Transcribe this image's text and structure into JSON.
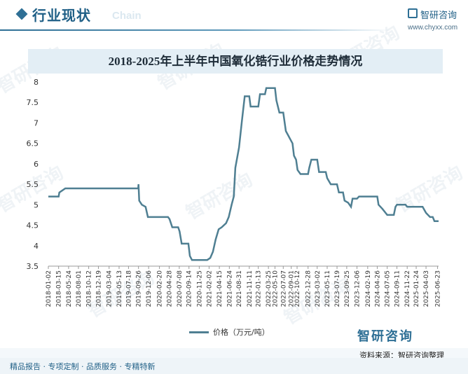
{
  "header": {
    "section_title": "行业现状",
    "section_title_en": "Chain"
  },
  "brand": {
    "name": "智研咨询",
    "url": "www.chyxx.com"
  },
  "watermark": {
    "text": "智研咨询"
  },
  "chart_data": {
    "type": "line",
    "title": "2018-2025年上半年中国氧化锆行业价格走势情况",
    "xlabel": "",
    "ylabel": "",
    "ylim": [
      3.5,
      8
    ],
    "yticks": [
      "3.5",
      "4",
      "4.5",
      "5",
      "5.5",
      "6",
      "6.5",
      "7",
      "7.5",
      "8"
    ],
    "xlim": [
      "2018-01-02",
      "2025-06-30"
    ],
    "xticks": [
      "2018-01-02",
      "2018-03-15",
      "2018-05-24",
      "2018-08-01",
      "2018-10-12",
      "2018-12-19",
      "2019-03-04",
      "2019-05-13",
      "2019-07-18",
      "2019-09-26",
      "2019-12-06",
      "2020-02-20",
      "2020-04-28",
      "2020-07-08",
      "2020-09-14",
      "2020-11-25",
      "2021-02-02",
      "2021-04-15",
      "2021-06-24",
      "2021-08-31",
      "2021-11-11",
      "2022-01-13",
      "2022-03-25",
      "2022-05-10",
      "2022-07-07",
      "2022-09-01",
      "2022-10-12",
      "2022-12-28",
      "2023-03-02",
      "2023-05-11",
      "2023-07-19",
      "2023-09-25",
      "2023-12-06",
      "2024-02-19",
      "2024-04-26",
      "2024-07-05",
      "2024-09-11",
      "2024-11-22",
      "2025-01-24",
      "2025-04-03",
      "2025-06-23"
    ],
    "grid": false,
    "legend_position": "bottom",
    "series": [
      {
        "name": "价格（万元/吨）",
        "color": "#4f7f92",
        "points": [
          [
            "2018-01-02",
            5.2
          ],
          [
            "2018-03-15",
            5.2
          ],
          [
            "2018-03-20",
            5.3
          ],
          [
            "2018-05-01",
            5.4
          ],
          [
            "2019-09-24",
            5.4
          ],
          [
            "2019-09-26",
            5.5
          ],
          [
            "2019-10-01",
            5.1
          ],
          [
            "2019-10-20",
            5.0
          ],
          [
            "2019-11-15",
            4.95
          ],
          [
            "2019-12-01",
            4.7
          ],
          [
            "2020-04-20",
            4.7
          ],
          [
            "2020-05-01",
            4.65
          ],
          [
            "2020-05-20",
            4.45
          ],
          [
            "2020-06-30",
            4.45
          ],
          [
            "2020-07-10",
            4.35
          ],
          [
            "2020-07-25",
            4.05
          ],
          [
            "2020-09-10",
            4.05
          ],
          [
            "2020-09-20",
            3.75
          ],
          [
            "2020-10-05",
            3.65
          ],
          [
            "2021-01-20",
            3.65
          ],
          [
            "2021-02-10",
            3.7
          ],
          [
            "2021-03-01",
            3.85
          ],
          [
            "2021-03-20",
            4.15
          ],
          [
            "2021-04-10",
            4.4
          ],
          [
            "2021-05-01",
            4.45
          ],
          [
            "2021-06-01",
            4.55
          ],
          [
            "2021-06-20",
            4.7
          ],
          [
            "2021-07-10",
            5.0
          ],
          [
            "2021-07-25",
            5.2
          ],
          [
            "2021-08-05",
            5.9
          ],
          [
            "2021-08-31",
            6.4
          ],
          [
            "2021-09-20",
            7.05
          ],
          [
            "2021-10-10",
            7.65
          ],
          [
            "2021-11-11",
            7.65
          ],
          [
            "2021-11-20",
            7.4
          ],
          [
            "2022-01-13",
            7.4
          ],
          [
            "2022-01-25",
            7.7
          ],
          [
            "2022-03-01",
            7.7
          ],
          [
            "2022-03-10",
            7.85
          ],
          [
            "2022-05-10",
            7.85
          ],
          [
            "2022-05-20",
            7.55
          ],
          [
            "2022-06-10",
            7.25
          ],
          [
            "2022-07-07",
            7.25
          ],
          [
            "2022-07-25",
            6.8
          ],
          [
            "2022-08-10",
            6.7
          ],
          [
            "2022-08-25",
            6.6
          ],
          [
            "2022-09-10",
            6.5
          ],
          [
            "2022-09-20",
            6.2
          ],
          [
            "2022-10-05",
            6.1
          ],
          [
            "2022-10-15",
            5.85
          ],
          [
            "2022-11-05",
            5.75
          ],
          [
            "2022-12-28",
            5.75
          ],
          [
            "2023-01-05",
            5.9
          ],
          [
            "2023-01-20",
            6.1
          ],
          [
            "2023-03-02",
            6.1
          ],
          [
            "2023-03-15",
            5.8
          ],
          [
            "2023-05-01",
            5.8
          ],
          [
            "2023-05-11",
            5.65
          ],
          [
            "2023-06-05",
            5.5
          ],
          [
            "2023-07-19",
            5.5
          ],
          [
            "2023-08-01",
            5.3
          ],
          [
            "2023-08-30",
            5.3
          ],
          [
            "2023-09-10",
            5.1
          ],
          [
            "2023-10-05",
            5.05
          ],
          [
            "2023-10-25",
            4.95
          ],
          [
            "2023-11-05",
            5.15
          ],
          [
            "2023-12-06",
            5.15
          ],
          [
            "2023-12-20",
            5.2
          ],
          [
            "2024-04-26",
            5.2
          ],
          [
            "2024-05-05",
            5.0
          ],
          [
            "2024-06-01",
            4.9
          ],
          [
            "2024-07-05",
            4.75
          ],
          [
            "2024-08-20",
            4.75
          ],
          [
            "2024-09-01",
            4.95
          ],
          [
            "2024-09-11",
            5.0
          ],
          [
            "2024-11-10",
            5.0
          ],
          [
            "2024-11-22",
            4.95
          ],
          [
            "2025-03-10",
            4.95
          ],
          [
            "2025-04-03",
            4.8
          ],
          [
            "2025-05-01",
            4.7
          ],
          [
            "2025-05-20",
            4.7
          ],
          [
            "2025-06-01",
            4.6
          ],
          [
            "2025-06-30",
            4.6
          ]
        ]
      }
    ]
  },
  "source": {
    "text": "资料来源：智研咨询整理"
  },
  "footer": {
    "text": "精品报告 · 专项定制 · 品质服务 · 专精特新"
  }
}
